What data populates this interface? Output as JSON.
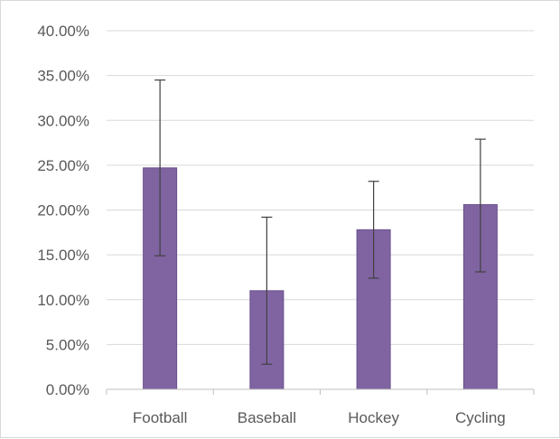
{
  "chart_data": {
    "type": "bar",
    "title": "",
    "xlabel": "",
    "ylabel": "",
    "categories": [
      "Football",
      "Baseball",
      "Hockey",
      "Cycling"
    ],
    "series": [
      {
        "values": [
          0.247,
          0.11,
          0.178,
          0.206
        ],
        "error_low": [
          0.149,
          0.028,
          0.124,
          0.131
        ],
        "error_high": [
          0.345,
          0.192,
          0.232,
          0.279
        ]
      }
    ],
    "ylim": [
      0,
      0.4
    ],
    "y_ticks": [
      0,
      0.05,
      0.1,
      0.15,
      0.2,
      0.25,
      0.3,
      0.35,
      0.4
    ],
    "y_tick_labels": [
      "0.00%",
      "5.00%",
      "10.00%",
      "15.00%",
      "20.00%",
      "25.00%",
      "30.00%",
      "35.00%",
      "40.00%"
    ],
    "grid": true,
    "legend": "none",
    "colors": {
      "bar": "#8064a2",
      "bar_edge": "#6a4f8d",
      "grid": "#d9d9d9",
      "axis": "#bfbfbf",
      "error_bar": "#404040",
      "text": "#595959"
    }
  }
}
